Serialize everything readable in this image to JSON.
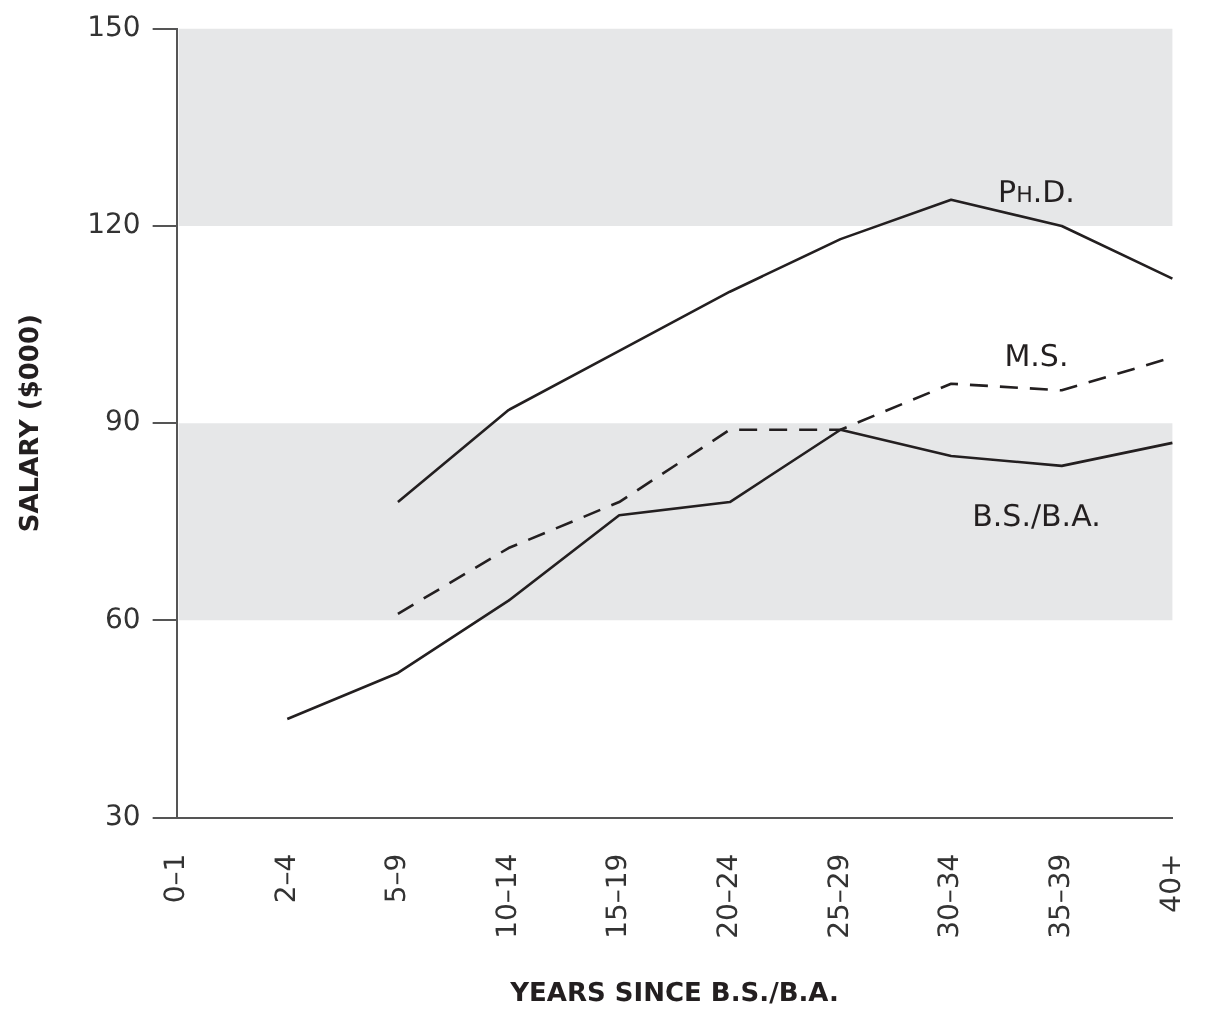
{
  "chart_data": {
    "type": "line",
    "xlabel": "YEARS SINCE B.S./B.A.",
    "ylabel": "SALARY ($000)",
    "categories": [
      "0–1",
      "2–4",
      "5–9",
      "10–14",
      "15–19",
      "20–24",
      "25–29",
      "30–34",
      "35–39",
      "40+"
    ],
    "ylim": [
      30,
      150
    ],
    "yticks": [
      30,
      60,
      90,
      120,
      150
    ],
    "grid": false,
    "legend": false,
    "marker": "none",
    "bands": [
      {
        "axis": "y",
        "from": 60,
        "to": 90,
        "color": "#e6e7e8"
      },
      {
        "axis": "y",
        "from": 120,
        "to": 150,
        "color": "#e6e7e8"
      }
    ],
    "series": [
      {
        "name": "Ph.D.",
        "color": "#231f20",
        "line_style": "solid",
        "values": [
          null,
          null,
          78,
          92,
          101,
          110,
          118,
          124,
          120,
          112
        ]
      },
      {
        "name": "M.S.",
        "color": "#231f20",
        "line_style": "dashed",
        "values": [
          null,
          null,
          61,
          71,
          78,
          89,
          89,
          96,
          95,
          100
        ]
      },
      {
        "name": "B.S./B.A.",
        "color": "#231f20",
        "line_style": "solid",
        "values": [
          null,
          45,
          52,
          63,
          76,
          78,
          89,
          85,
          83.5,
          87
        ]
      }
    ]
  }
}
